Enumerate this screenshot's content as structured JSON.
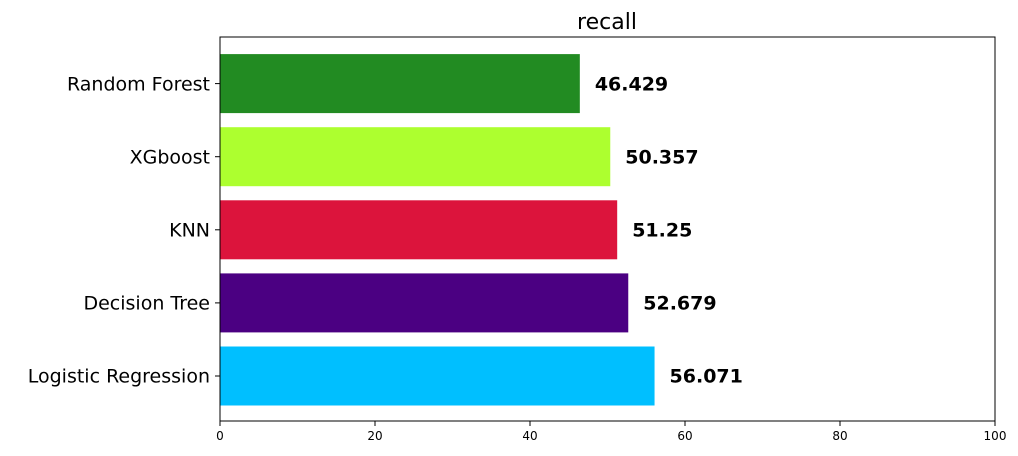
{
  "chart_data": {
    "type": "bar",
    "orientation": "horizontal",
    "title": "recall",
    "xlabel": "",
    "ylabel": "",
    "categories": [
      "Logistic Regression",
      "Decision Tree",
      "KNN",
      "XGboost",
      "Random Forest"
    ],
    "values": [
      56.071,
      52.679,
      51.25,
      50.357,
      46.429
    ],
    "value_labels": [
      "56.071",
      "52.679",
      "51.25",
      "50.357",
      "46.429"
    ],
    "colors": [
      "#00BFFF",
      "#4B0082",
      "#DC143C",
      "#ADFF2F",
      "#228B22"
    ],
    "xlim": [
      0,
      100
    ],
    "xticks": [
      0,
      20,
      40,
      60,
      80,
      100
    ],
    "xtick_labels": [
      "0",
      "20",
      "40",
      "60",
      "80",
      "100"
    ],
    "grid": false,
    "legend": "none"
  }
}
